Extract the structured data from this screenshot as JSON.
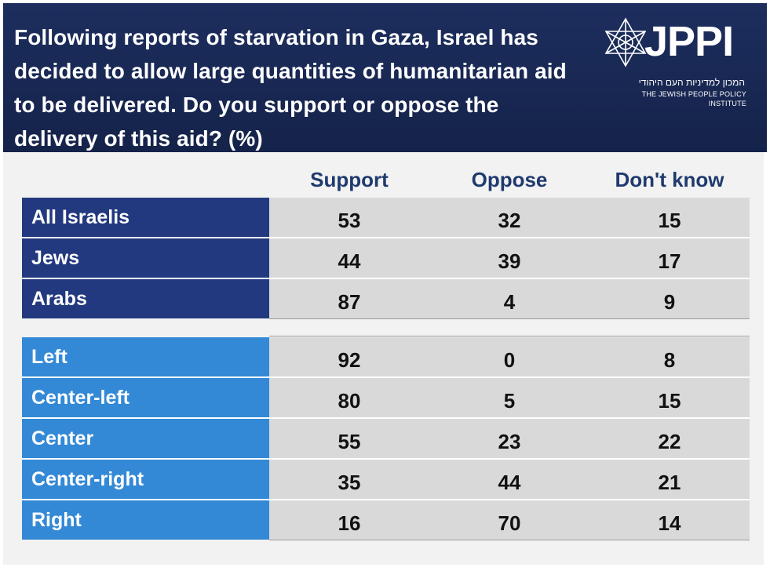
{
  "title": "Following reports of starvation in Gaza, Israel has decided to allow large quantities of humanitarian aid to be delivered. Do you support or oppose the delivery of this aid? (%)",
  "logo": {
    "wordmark": "JPPI",
    "hebrew": "המכון למדיניות העם היהודי",
    "english": "THE JEWISH PEOPLE POLICY INSTITUTE"
  },
  "colors": {
    "header_bg": "#1a2a58",
    "group1_label_bg": "#22397f",
    "group2_label_bg": "#3389d6",
    "column_header_text": "#1f3a6e",
    "cell_bg": "#d9d9d9"
  },
  "chart_data": {
    "type": "table",
    "columns": [
      "Support",
      "Oppose",
      "Don't know"
    ],
    "groups": [
      {
        "rows": [
          {
            "label": "All Israelis",
            "values": [
              53,
              32,
              15
            ]
          },
          {
            "label": "Jews",
            "values": [
              44,
              39,
              17
            ]
          },
          {
            "label": "Arabs",
            "values": [
              87,
              4,
              9
            ]
          }
        ]
      },
      {
        "rows": [
          {
            "label": "Left",
            "values": [
              92,
              0,
              8
            ]
          },
          {
            "label": "Center-left",
            "values": [
              80,
              5,
              15
            ]
          },
          {
            "label": "Center",
            "values": [
              55,
              23,
              22
            ]
          },
          {
            "label": "Center-right",
            "values": [
              35,
              44,
              21
            ]
          },
          {
            "label": "Right",
            "values": [
              16,
              70,
              14
            ]
          }
        ]
      }
    ]
  }
}
